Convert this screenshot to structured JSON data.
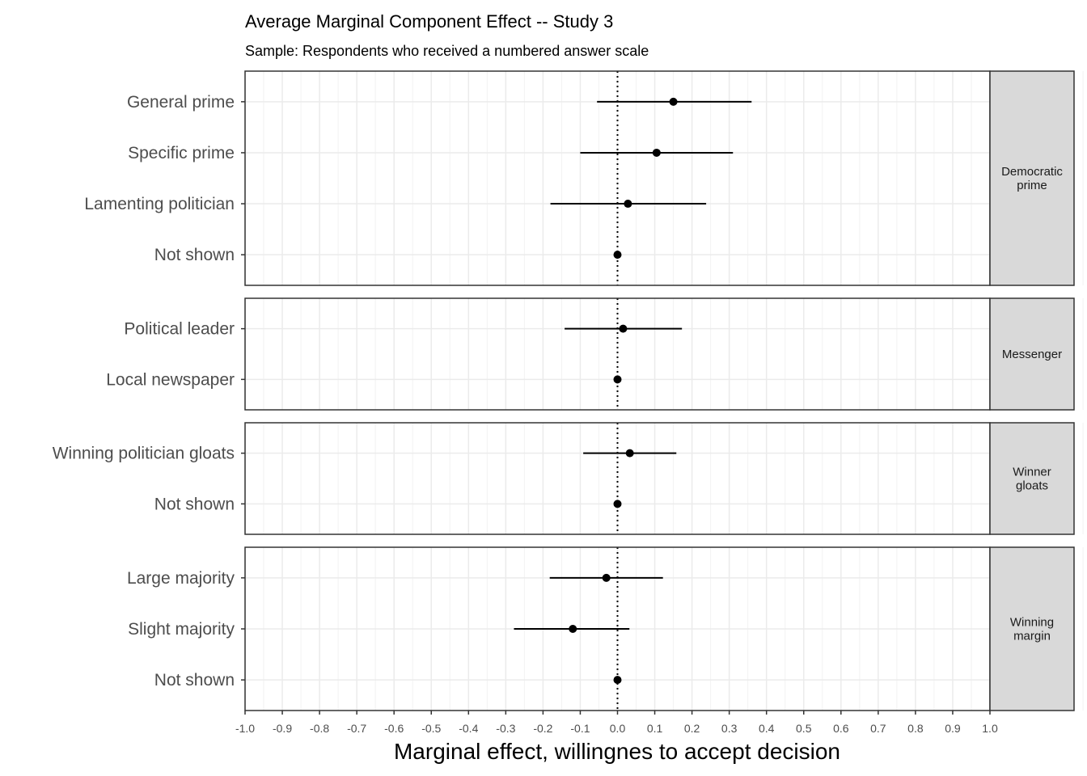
{
  "chart_data": {
    "type": "scatter",
    "title": "Average Marginal Component Effect -- Study 3",
    "subtitle": "Sample: Respondents who received a numbered answer scale",
    "xlabel": "Marginal effect, willingnes to accept decision",
    "ylabel": "",
    "xlim": [
      -1.0,
      1.0
    ],
    "xticks": [
      "-1.0",
      "-0.9",
      "-0.8",
      "-0.7",
      "-0.6",
      "-0.5",
      "-0.4",
      "-0.3",
      "-0.2",
      "-0.1",
      "0.0",
      "0.1",
      "0.2",
      "0.3",
      "0.4",
      "0.5",
      "0.6",
      "0.7",
      "0.8",
      "0.9",
      "1.0"
    ],
    "reference_line": 0,
    "grid": true,
    "facets": [
      {
        "strip": [
          "Democratic",
          "prime"
        ],
        "rows": [
          {
            "label": "General prime",
            "estimate": 0.15,
            "lower": -0.055,
            "upper": 0.36
          },
          {
            "label": "Specific prime",
            "estimate": 0.105,
            "lower": -0.1,
            "upper": 0.31
          },
          {
            "label": "Lamenting politician",
            "estimate": 0.028,
            "lower": -0.18,
            "upper": 0.238
          },
          {
            "label": "Not shown",
            "estimate": 0.0,
            "lower": 0.0,
            "upper": 0.0
          }
        ]
      },
      {
        "strip": [
          "Messenger"
        ],
        "rows": [
          {
            "label": "Political leader",
            "estimate": 0.015,
            "lower": -0.142,
            "upper": 0.173
          },
          {
            "label": "Local newspaper",
            "estimate": 0.0,
            "lower": 0.0,
            "upper": 0.0
          }
        ]
      },
      {
        "strip": [
          "Winner",
          "gloats"
        ],
        "rows": [
          {
            "label": "Winning politician gloats",
            "estimate": 0.033,
            "lower": -0.092,
            "upper": 0.158
          },
          {
            "label": "Not shown",
            "estimate": 0.0,
            "lower": 0.0,
            "upper": 0.0
          }
        ]
      },
      {
        "strip": [
          "Winning",
          "margin"
        ],
        "rows": [
          {
            "label": "Large majority",
            "estimate": -0.03,
            "lower": -0.182,
            "upper": 0.122
          },
          {
            "label": "Slight majority",
            "estimate": -0.12,
            "lower": -0.278,
            "upper": 0.032
          },
          {
            "label": "Not shown",
            "estimate": 0.0,
            "lower": 0.0,
            "upper": 0.0
          }
        ]
      }
    ]
  }
}
